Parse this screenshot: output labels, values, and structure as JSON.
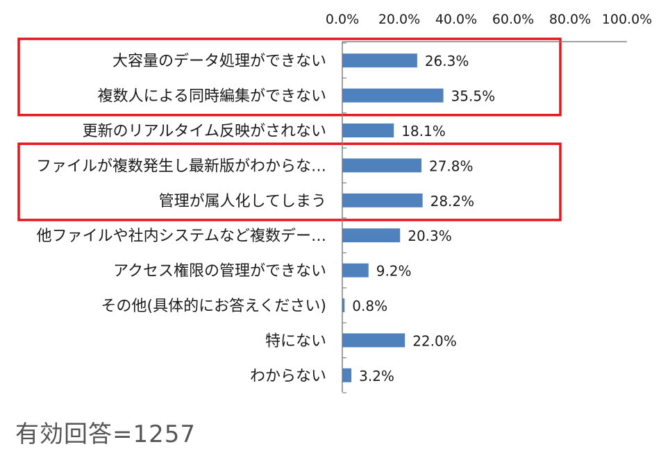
{
  "chart_data": {
    "type": "bar",
    "orientation": "horizontal",
    "categories": [
      "大容量のデータ処理ができない",
      "複数人による同時編集ができない",
      "更新のリアルタイム反映がされない",
      "ファイルが複数発生し最新版がわからな…",
      "管理が属人化してしまう",
      "他ファイルや社内システムなど複数デー…",
      "アクセス権限の管理ができない",
      "その他(具体的にお答えください)",
      "特にない",
      "わからない"
    ],
    "values": [
      26.3,
      35.5,
      18.1,
      27.8,
      28.2,
      20.3,
      9.2,
      0.8,
      22.0,
      3.2
    ],
    "value_labels": [
      "26.3%",
      "35.5%",
      "18.1%",
      "27.8%",
      "28.2%",
      "20.3%",
      "9.2%",
      "0.8%",
      "22.0%",
      "3.2%"
    ],
    "x_ticks": [
      "0.0%",
      "20.0%",
      "40.0%",
      "60.0%",
      "80.0%",
      "100.0%"
    ],
    "xlim": [
      0,
      100
    ],
    "axis_position": "top",
    "grid": false,
    "highlight_groups": [
      [
        0,
        1
      ],
      [
        3,
        4
      ]
    ],
    "colors": {
      "bar": "#4f81bd",
      "highlight": "#e8141b",
      "axis": "#808080",
      "text": "#1a1a1a"
    }
  },
  "footer": {
    "respondents": "有効回答=1257"
  }
}
